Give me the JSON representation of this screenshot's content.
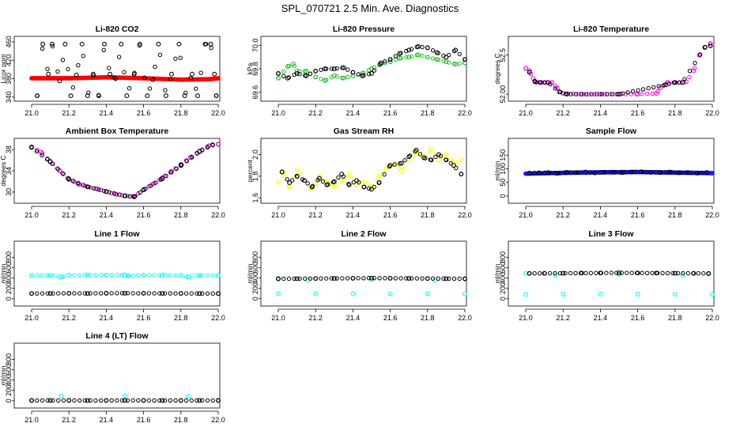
{
  "title": "SPL_070721  2.5 Min. Ave. Diagnostics",
  "chart_data": [
    {
      "id": "co2",
      "type": "scatter",
      "title": "Li-820 CO2",
      "ylabel": "Licor ppm",
      "xlim": [
        21.0,
        22.0
      ],
      "xticks": [
        "21.0",
        "21.2",
        "21.4",
        "21.6",
        "21.8",
        "22.0"
      ],
      "ylim": [
        338,
        465
      ],
      "yticks": [
        "340",
        "380",
        "420",
        "460"
      ],
      "series": [
        {
          "name": "co2-averages",
          "color": "#ff0000",
          "style": "fill",
          "x": [
            21.0,
            21.2,
            21.4,
            21.6,
            21.8,
            21.95,
            22.0
          ],
          "y": [
            381,
            381,
            383,
            381,
            378,
            379,
            381
          ]
        },
        {
          "name": "co2-samples",
          "color": "#000000",
          "style": "circle",
          "x": [
            21.03,
            21.06,
            21.09,
            21.11,
            21.15,
            21.18,
            21.21,
            21.24,
            21.27,
            21.3,
            21.33,
            21.36,
            21.39,
            21.42,
            21.45,
            21.48,
            21.51,
            21.55,
            21.58,
            21.62,
            21.65,
            21.68,
            21.72,
            21.75,
            21.79,
            21.82,
            21.86,
            21.89,
            21.93,
            21.96,
            21.98,
            21.99
          ],
          "y": [
            343,
            455,
            390,
            455,
            375,
            455,
            343,
            388,
            455,
            343,
            390,
            343,
            455,
            390,
            380,
            455,
            343,
            390,
            455,
            343,
            378,
            455,
            343,
            390,
            455,
            343,
            390,
            343,
            455,
            455,
            390,
            343
          ]
        }
      ]
    },
    {
      "id": "pressure",
      "type": "scatter",
      "title": "Li-820 Pressure",
      "ylabel": "kPa",
      "xlim": [
        21.0,
        22.0
      ],
      "xticks": [
        "21.0",
        "21.2",
        "21.4",
        "21.6",
        "21.8",
        "22.0"
      ],
      "ylim": [
        69.55,
        70.05
      ],
      "yticks": [
        "69.6",
        "69.8",
        "70.0"
      ],
      "series": [
        {
          "name": "pressure-green",
          "color": "#22bb22",
          "style": "circle",
          "x": [
            21.0,
            21.05,
            21.08,
            21.1,
            21.15,
            21.2,
            21.25,
            21.3,
            21.35,
            21.4,
            21.45,
            21.5,
            21.55,
            21.6,
            21.65,
            21.7,
            21.75,
            21.8,
            21.85,
            21.9,
            21.95,
            22.0
          ],
          "y": [
            69.72,
            69.82,
            69.84,
            69.78,
            69.78,
            69.73,
            69.7,
            69.74,
            69.72,
            69.74,
            69.76,
            69.8,
            69.84,
            69.86,
            69.89,
            69.9,
            69.92,
            69.9,
            69.88,
            69.86,
            69.84,
            69.85
          ]
        },
        {
          "name": "pressure-black",
          "color": "#000000",
          "style": "circle",
          "x": [
            21.0,
            21.05,
            21.1,
            21.15,
            21.2,
            21.25,
            21.3,
            21.35,
            21.4,
            21.45,
            21.5,
            21.55,
            21.6,
            21.65,
            21.7,
            21.75,
            21.8,
            21.85,
            21.9,
            21.95,
            22.0
          ],
          "y": [
            69.76,
            69.72,
            69.76,
            69.74,
            69.78,
            69.8,
            69.8,
            69.81,
            69.77,
            69.74,
            69.76,
            69.85,
            69.88,
            69.93,
            69.96,
            69.99,
            69.98,
            69.94,
            69.9,
            69.96,
            69.88
          ]
        }
      ]
    },
    {
      "id": "temperature",
      "type": "scatter",
      "title": "Li-820 Temperature",
      "ylabel": "degrees C",
      "xlim": [
        21.0,
        22.0
      ],
      "xticks": [
        "21.0",
        "21.2",
        "21.4",
        "21.6",
        "21.8",
        "22.0"
      ],
      "ylim": [
        51.95,
        52.7
      ],
      "yticks": [
        "52.00",
        "52.5"
      ],
      "series": [
        {
          "name": "temp-magenta",
          "color": "#ff00ff",
          "style": "circle",
          "x": [
            21.0,
            21.02,
            21.04,
            21.06,
            21.1,
            21.14,
            21.16,
            21.2,
            21.3,
            21.4,
            21.5,
            21.6,
            21.7,
            21.72,
            21.76,
            21.8,
            21.84,
            21.86,
            21.9,
            21.93,
            21.96,
            21.99
          ],
          "y": [
            52.33,
            52.3,
            52.2,
            52.15,
            52.15,
            52.15,
            52.1,
            52.01,
            52.0,
            52.0,
            52.0,
            52.0,
            52.01,
            52.08,
            52.15,
            52.15,
            52.15,
            52.16,
            52.3,
            52.5,
            52.6,
            52.65
          ]
        },
        {
          "name": "temp-black",
          "color": "#000000",
          "style": "circle",
          "x": [
            21.02,
            21.05,
            21.08,
            21.12,
            21.18,
            21.22,
            21.5,
            21.75,
            21.8,
            21.84,
            21.96,
            21.99
          ],
          "y": [
            52.28,
            52.16,
            52.15,
            52.15,
            52.03,
            52.0,
            52.0,
            52.12,
            52.15,
            52.15,
            52.6,
            52.62
          ]
        }
      ]
    },
    {
      "id": "ambient",
      "type": "scatter",
      "title": "Ambient Box Temperature",
      "ylabel": "degrees C",
      "xlim": [
        21.0,
        22.0
      ],
      "xticks": [
        "21.0",
        "21.2",
        "21.4",
        "21.6",
        "21.8",
        "22.0"
      ],
      "ylim": [
        28.5,
        39.5
      ],
      "yticks": [
        "30",
        "34",
        "38"
      ],
      "series": [
        {
          "name": "ambient-purple",
          "color": "#cc00cc",
          "style": "circle",
          "x": [
            21.0,
            21.05,
            21.1,
            21.15,
            21.2,
            21.25,
            21.3,
            21.35,
            21.4,
            21.45,
            21.5,
            21.55,
            21.6,
            21.65,
            21.7,
            21.75,
            21.8,
            21.85,
            21.9,
            21.95,
            22.0
          ],
          "y": [
            38.5,
            37.5,
            35.8,
            34.0,
            32.5,
            31.5,
            31.0,
            30.6,
            30.1,
            29.6,
            29.3,
            29.2,
            30.5,
            31.5,
            32.7,
            33.9,
            35.2,
            36.5,
            37.7,
            38.7,
            39.0
          ]
        },
        {
          "name": "ambient-black",
          "color": "#000000",
          "style": "circle",
          "x": [
            21.0,
            21.1,
            21.2,
            21.3,
            21.4,
            21.5,
            21.55,
            21.6,
            21.7,
            21.8,
            21.9,
            21.97
          ],
          "y": [
            38.4,
            35.7,
            32.4,
            31.0,
            30.1,
            29.3,
            29.1,
            30.4,
            32.5,
            35.0,
            37.6,
            38.9
          ]
        }
      ]
    },
    {
      "id": "rh",
      "type": "scatter",
      "title": "Gas Stream RH",
      "ylabel": "percent",
      "xlim": [
        21.0,
        22.0
      ],
      "xticks": [
        "21.0",
        "21.2",
        "21.4",
        "21.6",
        "21.8",
        "22.0"
      ],
      "ylim": [
        1.58,
        2.12
      ],
      "yticks": [
        "1.6",
        "1.8",
        "2.0"
      ],
      "series": [
        {
          "name": "rh-yellow",
          "color": "#ffff00",
          "style": "circle",
          "x": [
            21.0,
            21.03,
            21.06,
            21.1,
            21.14,
            21.18,
            21.22,
            21.26,
            21.3,
            21.34,
            21.38,
            21.42,
            21.46,
            21.5,
            21.54,
            21.58,
            21.62,
            21.66,
            21.7,
            21.74,
            21.78,
            21.82,
            21.86,
            21.9,
            21.94,
            21.98
          ],
          "y": [
            1.75,
            1.82,
            1.7,
            1.86,
            1.76,
            1.68,
            1.8,
            1.74,
            1.7,
            1.76,
            1.82,
            1.72,
            1.75,
            1.7,
            1.8,
            1.88,
            1.92,
            1.85,
            1.95,
            2.02,
            1.98,
            2.05,
            1.95,
            2.0,
            1.92,
            1.95
          ]
        },
        {
          "name": "rh-black",
          "color": "#000000",
          "style": "circle",
          "x": [
            21.02,
            21.06,
            21.1,
            21.14,
            21.18,
            21.22,
            21.26,
            21.3,
            21.34,
            21.38,
            21.42,
            21.46,
            21.5,
            21.54,
            21.6,
            21.66,
            21.7,
            21.74,
            21.78,
            21.82,
            21.86,
            21.9,
            21.94,
            21.98
          ],
          "y": [
            1.84,
            1.74,
            1.8,
            1.76,
            1.7,
            1.78,
            1.72,
            1.75,
            1.82,
            1.72,
            1.76,
            1.7,
            1.68,
            1.74,
            1.9,
            1.92,
            1.98,
            2.04,
            1.97,
            1.95,
            2.0,
            1.95,
            1.9,
            1.82
          ]
        }
      ]
    },
    {
      "id": "sample",
      "type": "scatter",
      "title": "Sample Flow",
      "ylabel": "ml/min",
      "xlim": [
        21.0,
        22.0
      ],
      "xticks": [
        "21.0",
        "21.2",
        "21.4",
        "21.6",
        "21.8",
        "22.0"
      ],
      "ylim": [
        -15,
        200
      ],
      "yticks": [
        "0",
        "50",
        "100",
        "150"
      ],
      "series": [
        {
          "name": "sample-blue",
          "color": "#1a1aff",
          "style": "fill",
          "x": [
            21.0,
            21.2,
            21.4,
            21.6,
            21.8,
            22.0
          ],
          "y": [
            82,
            85,
            87,
            88,
            86,
            84
          ]
        },
        {
          "name": "sample-black",
          "color": "#000000",
          "style": "circle",
          "x": [
            21.02,
            21.07,
            21.12,
            21.17,
            21.22,
            21.27,
            21.32,
            21.37,
            21.42,
            21.47,
            21.52,
            21.57,
            21.62,
            21.67,
            21.72,
            21.77,
            21.82,
            21.87,
            21.92,
            21.97
          ],
          "y": [
            84,
            85,
            86,
            83,
            87,
            86,
            88,
            85,
            87,
            87,
            86,
            88,
            89,
            87,
            86,
            88,
            85,
            86,
            84,
            86
          ]
        }
      ]
    },
    {
      "id": "line1",
      "type": "scatter",
      "title": "Line 1 Flow",
      "ylabel": "ml/min",
      "xlim": [
        21.0,
        22.0
      ],
      "xticks": [
        "21.0",
        "21.2",
        "21.4",
        "21.6",
        "21.8",
        "22.0"
      ],
      "ylim": [
        -80,
        1050
      ],
      "yticks": [
        "0",
        "200",
        "400",
        "600",
        "800"
      ],
      "series": [
        {
          "name": "line1-cyan",
          "color": "#00ffff",
          "style": "circle",
          "x": [
            21.0,
            21.1,
            21.16,
            21.2,
            21.3,
            21.4,
            21.5,
            21.52,
            21.6,
            21.7,
            21.8,
            21.84,
            21.9,
            22.0
          ],
          "y": [
            450,
            452,
            420,
            455,
            455,
            458,
            460,
            440,
            456,
            454,
            452,
            418,
            450,
            450
          ]
        },
        {
          "name": "line1-black",
          "color": "#000000",
          "style": "circle",
          "x": [
            21.0,
            21.1,
            21.2,
            21.3,
            21.4,
            21.5,
            21.6,
            21.7,
            21.8,
            21.9,
            22.0
          ],
          "y": [
            100,
            102,
            104,
            103,
            105,
            106,
            104,
            103,
            102,
            101,
            100
          ]
        }
      ]
    },
    {
      "id": "line2",
      "type": "scatter",
      "title": "Line 2 Flow",
      "ylabel": "ml/min",
      "xlim": [
        21.0,
        22.0
      ],
      "xticks": [
        "21.0",
        "21.2",
        "21.4",
        "21.6",
        "21.8",
        "22.0"
      ],
      "ylim": [
        -80,
        1050
      ],
      "yticks": [
        "0",
        "200",
        "400",
        "600",
        "800"
      ],
      "series": [
        {
          "name": "line2-cyan",
          "color": "#00ffff",
          "style": "circle",
          "x": [
            21.0,
            21.16,
            21.3,
            21.5,
            21.7,
            21.84,
            22.0
          ],
          "y": [
            392,
            360,
            395,
            365,
            398,
            355,
            390
          ]
        },
        {
          "name": "line2-cyan-low",
          "color": "#00ffff",
          "style": "circle",
          "x": [
            21.0,
            21.2,
            21.4,
            21.6,
            21.8,
            22.0
          ],
          "y": [
            95,
            96,
            98,
            97,
            95,
            94
          ]
        },
        {
          "name": "line2-black",
          "color": "#000000",
          "style": "circle",
          "x": [
            21.0,
            21.1,
            21.2,
            21.3,
            21.4,
            21.5,
            21.6,
            21.7,
            21.8,
            21.9,
            22.0
          ],
          "y": [
            385,
            387,
            390,
            392,
            395,
            398,
            395,
            393,
            390,
            388,
            385
          ]
        }
      ]
    },
    {
      "id": "line3",
      "type": "scatter",
      "title": "Line 3 Flow",
      "ylabel": "ml/min",
      "xlim": [
        21.0,
        22.0
      ],
      "xticks": [
        "21.0",
        "21.2",
        "21.4",
        "21.6",
        "21.8",
        "22.0"
      ],
      "ylim": [
        -80,
        1050
      ],
      "yticks": [
        "0",
        "200",
        "400",
        "600",
        "800"
      ],
      "series": [
        {
          "name": "line3-cyan",
          "color": "#00ffff",
          "style": "circle",
          "x": [
            21.0,
            21.16,
            21.5,
            21.84,
            21.98
          ],
          "y": [
            490,
            460,
            470,
            455,
            480
          ]
        },
        {
          "name": "line3-cyan-low",
          "color": "#00ffff",
          "style": "circle",
          "x": [
            21.0,
            21.2,
            21.4,
            21.6,
            21.8,
            22.0
          ],
          "y": [
            85,
            88,
            90,
            89,
            87,
            84
          ]
        },
        {
          "name": "line3-black",
          "color": "#000000",
          "style": "circle",
          "x": [
            21.02,
            21.1,
            21.2,
            21.3,
            21.4,
            21.5,
            21.6,
            21.7,
            21.8,
            21.9,
            21.98
          ],
          "y": [
            488,
            490,
            492,
            495,
            497,
            500,
            497,
            495,
            492,
            490,
            488
          ]
        }
      ]
    },
    {
      "id": "line4",
      "type": "scatter",
      "title": "Line 4 (LT) Flow",
      "ylabel": "ml/min",
      "xlim": [
        21.0,
        22.0
      ],
      "xticks": [
        "21.0",
        "21.2",
        "21.4",
        "21.6",
        "21.8",
        "22.0"
      ],
      "ylim": [
        -80,
        1050
      ],
      "yticks": [
        "0",
        "200",
        "400",
        "600",
        "800"
      ],
      "series": [
        {
          "name": "line4-cyan",
          "color": "#00ffff",
          "style": "circle",
          "x": [
            21.0,
            21.16,
            21.5,
            21.84,
            22.0
          ],
          "y": [
            5,
            90,
            95,
            85,
            5
          ]
        },
        {
          "name": "line4-black",
          "color": "#000000",
          "style": "circle",
          "x": [
            21.0,
            21.1,
            21.2,
            21.3,
            21.4,
            21.5,
            21.6,
            21.7,
            21.8,
            21.9,
            22.0
          ],
          "y": [
            5,
            6,
            6,
            5,
            5,
            6,
            6,
            5,
            5,
            6,
            5
          ]
        }
      ]
    }
  ]
}
